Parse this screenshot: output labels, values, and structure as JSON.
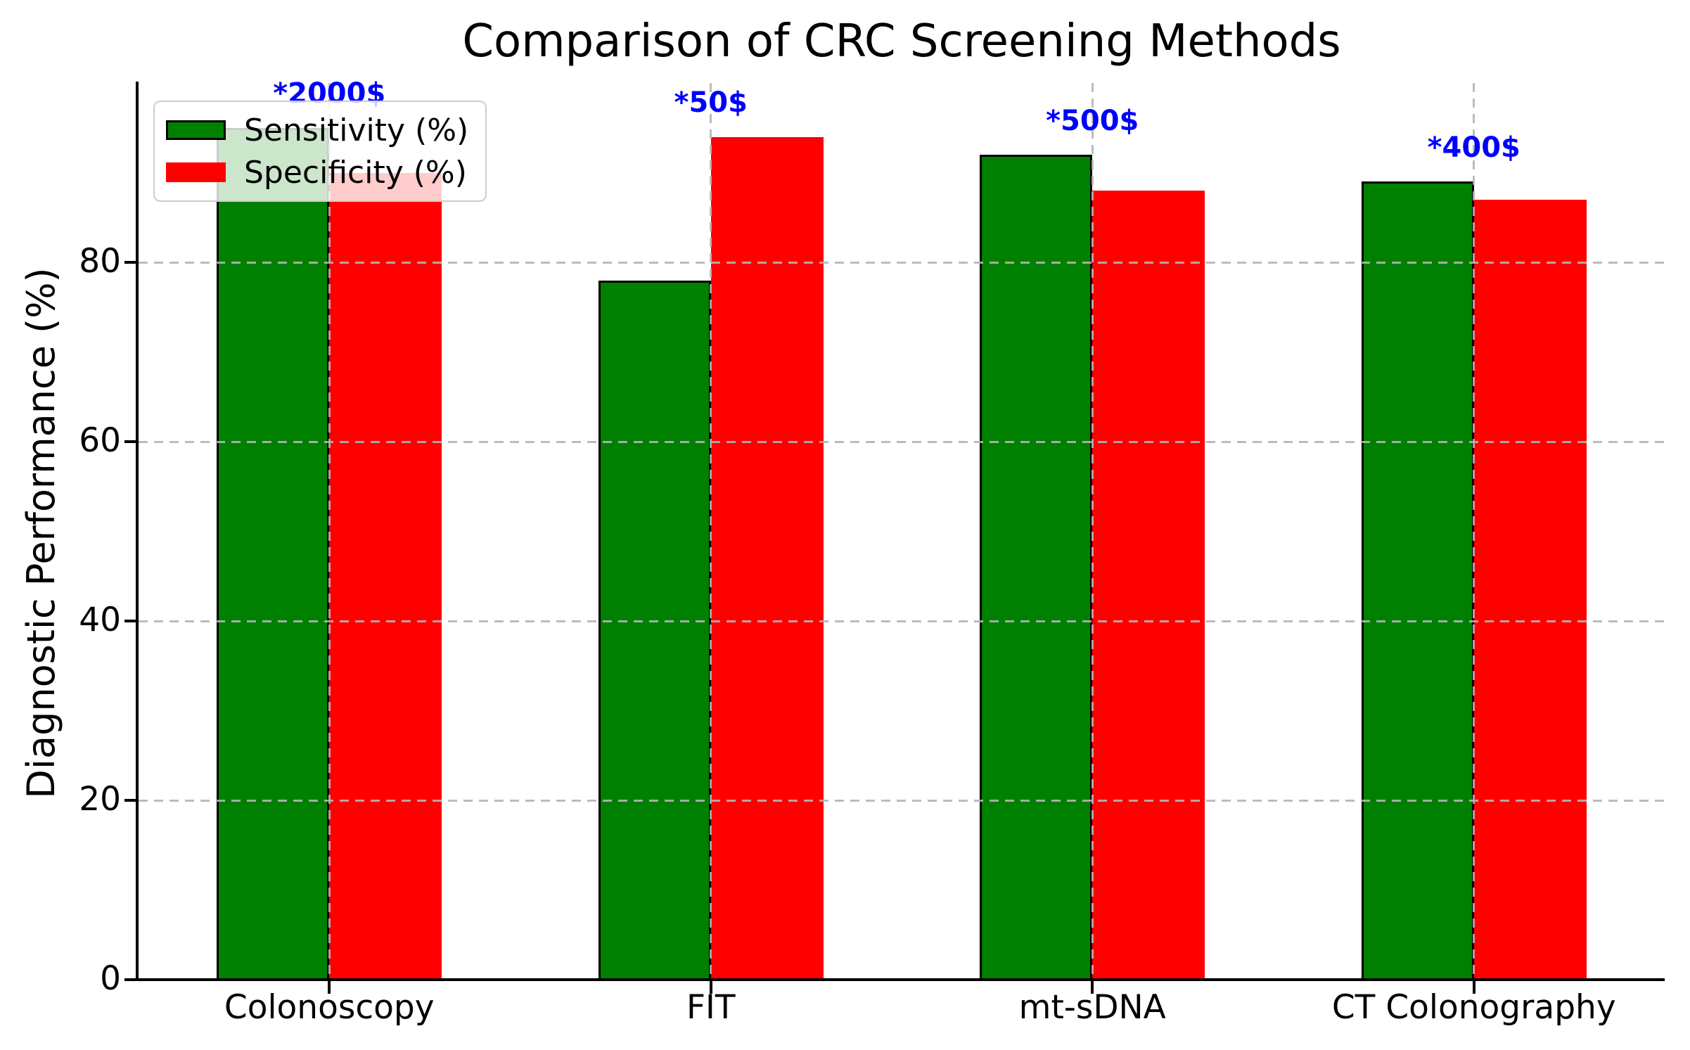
{
  "chart_data": {
    "type": "bar",
    "title": "Comparison of CRC Screening Methods",
    "ylabel": "Diagnostic Performance (%)",
    "xlabel": "",
    "categories": [
      "Colonoscopy",
      "FIT",
      "mt-sDNA",
      "CT Colonography"
    ],
    "series": [
      {
        "name": "Sensitivity (%)",
        "color": "#008000",
        "edge_color": "#000000",
        "values": [
          95,
          78,
          92,
          89
        ]
      },
      {
        "name": "Specificity (%)",
        "color": "#ff0000",
        "edge_color": null,
        "values": [
          90,
          94,
          88,
          87
        ]
      }
    ],
    "annotations": {
      "color": "#0000ff",
      "labels": [
        "*2000$",
        "*50$",
        "*500$",
        "*400$"
      ]
    },
    "yticks": [
      0,
      20,
      40,
      60,
      80
    ],
    "ylim": [
      0,
      100
    ],
    "legend": {
      "position": "upper left"
    },
    "grid": {
      "style": "dashed",
      "color": "#b4b4b4",
      "axes": "both",
      "above_bars": true
    }
  }
}
